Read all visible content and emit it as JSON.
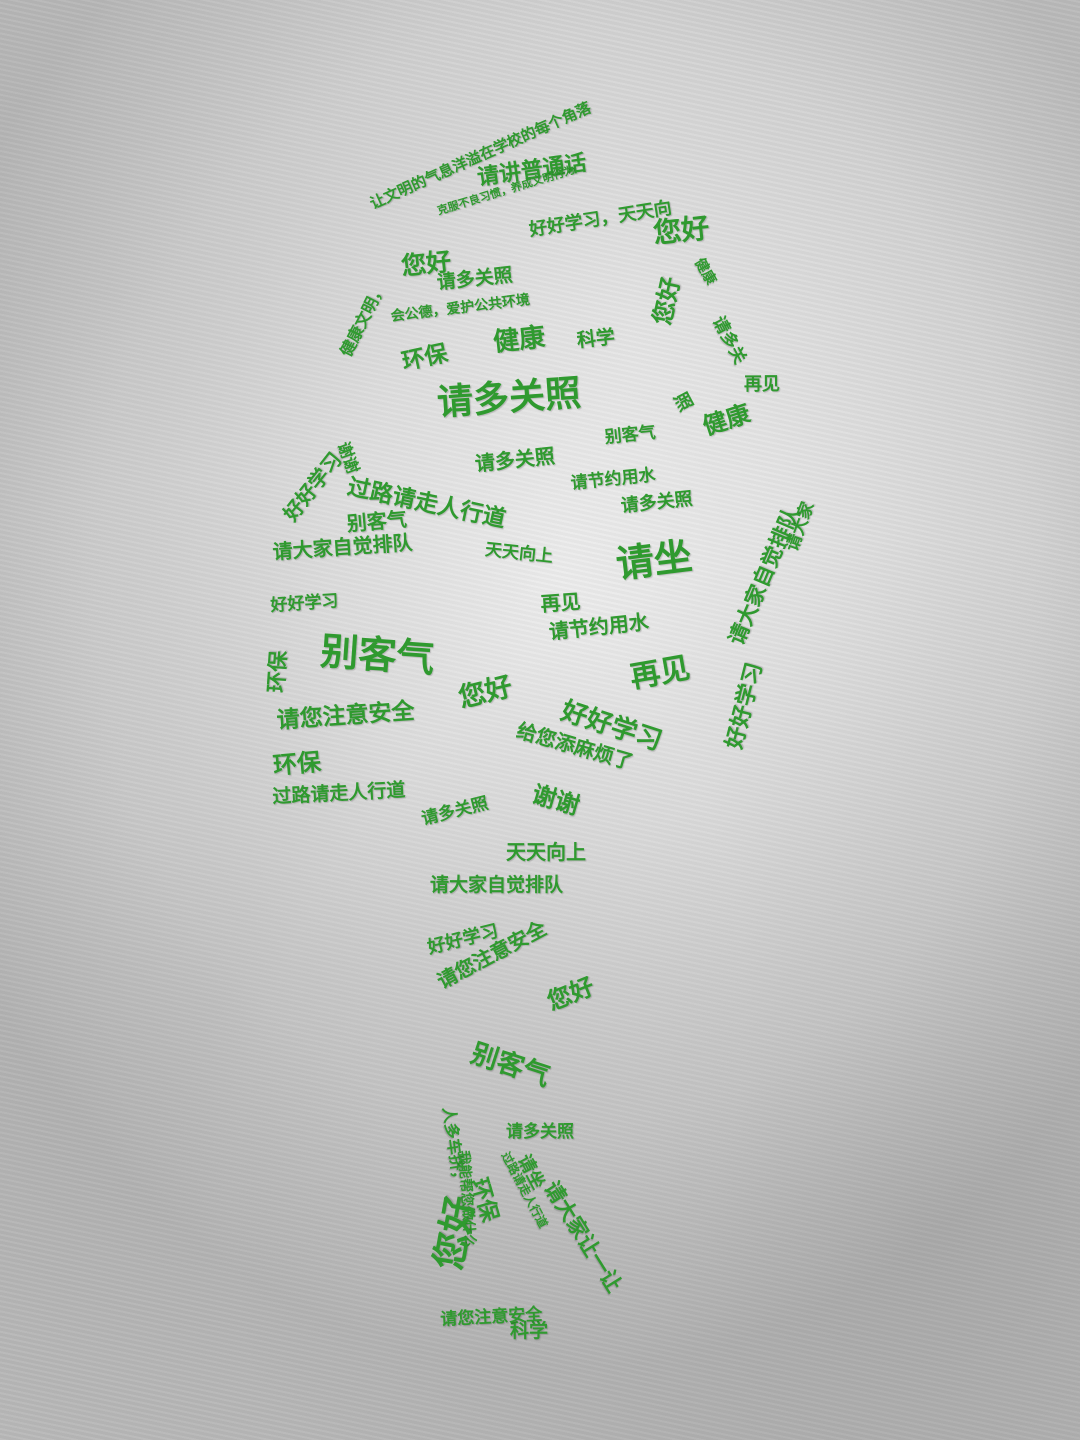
{
  "colors": {
    "text_green": "#2f9a2f",
    "wall_gray": "#e3e3e3"
  },
  "words": [
    "让文明的气息洋溢在学校的每个角落",
    "请讲普通话",
    "克服不良习惯，养成文明行为",
    "好好学习，天天向",
    "您好",
    "健康文明，",
    "您好",
    "健康",
    "请多关照",
    "会公德，爱护公共环境",
    "请多关",
    "环保",
    "健康",
    "科学",
    "您好",
    "请多关照",
    "照",
    "再见",
    "好好学习",
    "谢谢",
    "请多关照",
    "别客气",
    "健康",
    "请节约用水",
    "过路请走人行道",
    "请多关照",
    "请大家自觉排队",
    "别客气",
    "请大家自觉排队",
    "天天向上",
    "请坐",
    "好好学习",
    "再见",
    "请节约用水",
    "环保",
    "别客气",
    "请大家",
    "好好学习",
    "您好",
    "再见",
    "好好学习",
    "请您注意安全",
    "给您添麻烦了",
    "环保",
    "过路请走人行道",
    "谢谢",
    "请多关照",
    "天天向上",
    "请大家自觉排队",
    "好好学习",
    "请您注意安全",
    "您好",
    "别客气",
    "人多车挤，",
    "请多关照",
    "请坐",
    "我能帮您做什么",
    "过路请走人行道",
    "请大家让一让",
    "环保",
    "您好",
    "科学",
    "请您注意安全"
  ]
}
